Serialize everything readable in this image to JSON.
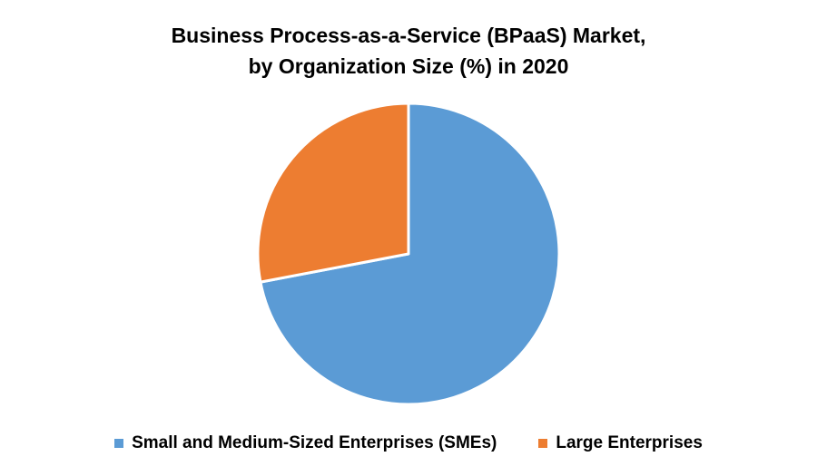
{
  "chart_data": {
    "type": "pie",
    "title_lines": [
      "Business Process-as-a-Service (BPaaS)  Market,",
      "by Organization Size (%) in 2020"
    ],
    "series": [
      {
        "name": "Small and Medium-Sized Enterprises (SMEs)",
        "value": 72,
        "color": "#5B9BD5"
      },
      {
        "name": "Large Enterprises",
        "value": 28,
        "color": "#ED7D31"
      }
    ],
    "start_position": "top",
    "direction": "clockwise",
    "legend_position": "bottom"
  }
}
